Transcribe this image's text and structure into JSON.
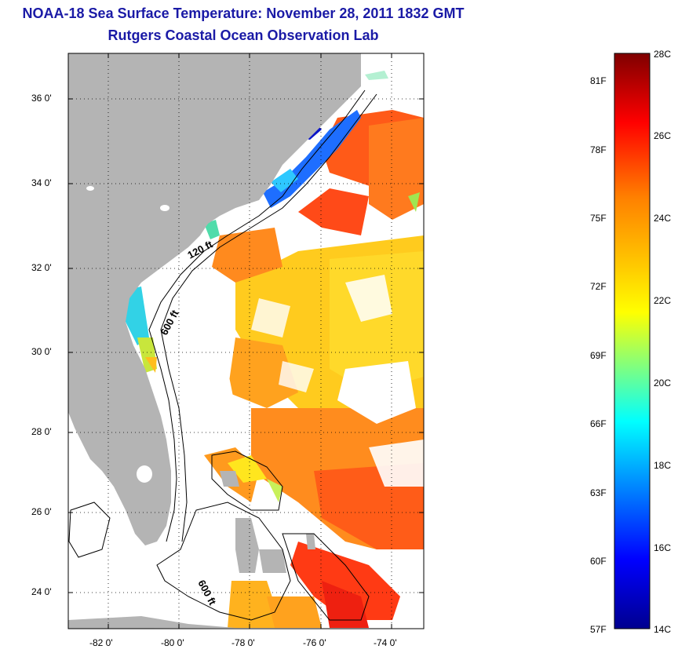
{
  "title_line1": "NOAA-18 Sea Surface Temperature:  November 28, 2011 1832 GMT",
  "title_line2": "Rutgers Coastal Ocean Observation Lab",
  "map": {
    "lat_ticks": [
      "36 0'",
      "34 0'",
      "32 0'",
      "30 0'",
      "28 0'",
      "26 0'",
      "24 0'"
    ],
    "lon_ticks": [
      "-82 0'",
      "-80 0'",
      "-78 0'",
      "-76 0'",
      "-74 0'"
    ],
    "isobath_labels": [
      "120 ft",
      "600 ft",
      "600 ft"
    ],
    "colors": {
      "land": "#b4b4b4",
      "ocean_cloud": "#ffffff",
      "contour": "#000000"
    }
  },
  "colorbar": {
    "celsius": [
      "28C",
      "26C",
      "24C",
      "22C",
      "20C",
      "18C",
      "16C",
      "14C"
    ],
    "fahrenheit": [
      "81F",
      "78F",
      "75F",
      "72F",
      "69F",
      "66F",
      "63F",
      "60F",
      "57F"
    ],
    "colormap": "jet"
  }
}
